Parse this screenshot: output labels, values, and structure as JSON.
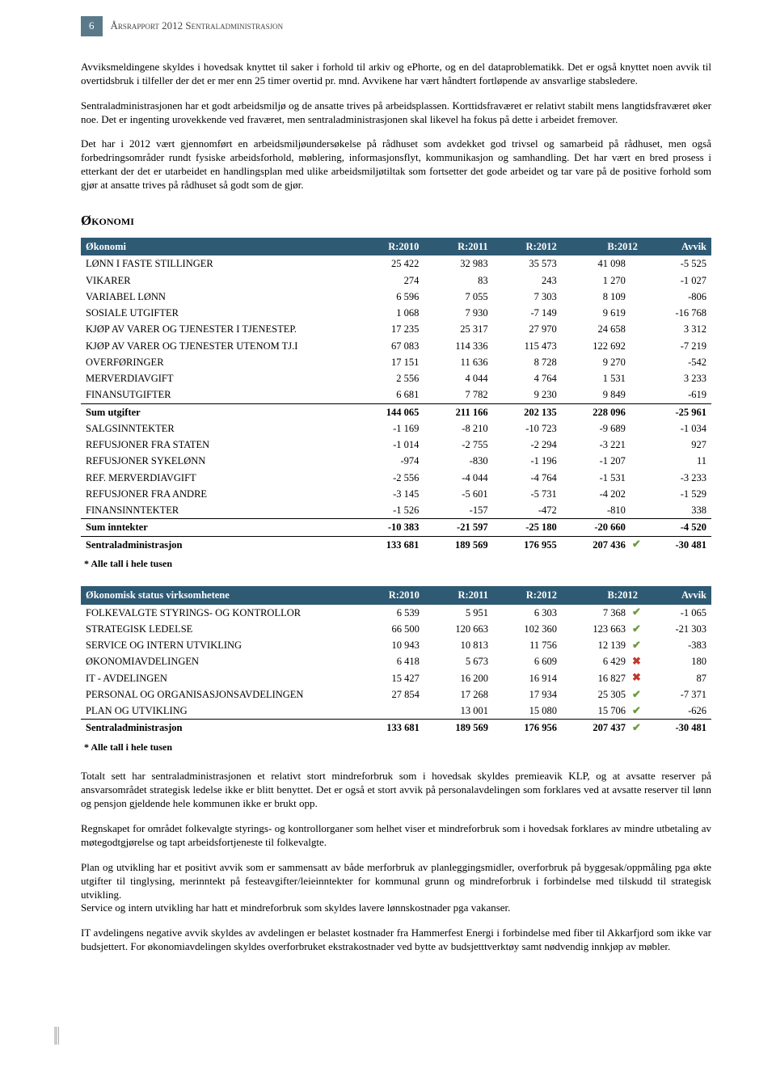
{
  "header": {
    "page_number": "6",
    "title": "Årsrapport 2012 Sentraladministrasjon"
  },
  "paragraphs": [
    "Avviksmeldingene skyldes i hovedsak knyttet til saker i forhold til arkiv og ePhorte, og en del dataproblematikk. Det er også knyttet noen avvik til overtidsbruk i tilfeller der det er mer enn 25 timer overtid pr. mnd. Avvikene har vært håndtert fortløpende av ansvarlige stabsledere.",
    "Sentraladministrasjonen har et godt arbeidsmiljø og de ansatte trives på arbeidsplassen. Korttidsfraværet er relativt stabilt mens langtidsfraværet øker noe. Det er ingenting urovekkende ved fraværet, men sentraladministrasjonen skal likevel ha fokus på dette i arbeidet fremover.",
    "Det har i 2012 vært gjennomført en arbeidsmiljøundersøkelse på rådhuset som avdekket god trivsel og samarbeid på rådhuset, men også forbedringsområder rundt fysiske arbeidsforhold, møblering, informasjonsflyt, kommunikasjon og samhandling. Det har vært en bred prosess i etterkant der det er utarbeidet en handlingsplan med ulike arbeidsmiljøtiltak som fortsetter det gode arbeidet og tar vare på de positive forhold som gjør at ansatte trives på rådhuset så godt som de gjør."
  ],
  "section_title": "Økonomi",
  "table1": {
    "header_bg": "#2e5a74",
    "header_color": "#ffffff",
    "columns": [
      "Økonomi",
      "R:2010",
      "R:2011",
      "R:2012",
      "B:2012",
      "Avvik"
    ],
    "rows": [
      {
        "label": "LØNN I FASTE STILLINGER",
        "c": [
          "25 422",
          "32 983",
          "35 573",
          "41 098",
          "-5 525"
        ]
      },
      {
        "label": "VIKARER",
        "c": [
          "274",
          "83",
          "243",
          "1 270",
          "-1 027"
        ]
      },
      {
        "label": "VARIABEL LØNN",
        "c": [
          "6 596",
          "7 055",
          "7 303",
          "8 109",
          "-806"
        ]
      },
      {
        "label": "SOSIALE UTGIFTER",
        "c": [
          "1 068",
          "7 930",
          "-7 149",
          "9 619",
          "-16 768"
        ]
      },
      {
        "label": "KJØP AV VARER OG TJENESTER I TJENESTEP.",
        "c": [
          "17 235",
          "25 317",
          "27 970",
          "24 658",
          "3 312"
        ]
      },
      {
        "label": "KJØP AV VARER OG TJENESTER UTENOM TJ.I",
        "c": [
          "67 083",
          "114 336",
          "115 473",
          "122 692",
          "-7 219"
        ]
      },
      {
        "label": "OVERFØRINGER",
        "c": [
          "17 151",
          "11 636",
          "8 728",
          "9 270",
          "-542"
        ]
      },
      {
        "label": "MERVERDIAVGIFT",
        "c": [
          "2 556",
          "4 044",
          "4 764",
          "1 531",
          "3 233"
        ]
      },
      {
        "label": "FINANSUTGIFTER",
        "c": [
          "6 681",
          "7 782",
          "9 230",
          "9 849",
          "-619"
        ]
      }
    ],
    "subtotal1": {
      "label": "Sum utgifter",
      "c": [
        "144 065",
        "211 166",
        "202 135",
        "228 096",
        "-25 961"
      ]
    },
    "rows2": [
      {
        "label": "SALGSINNTEKTER",
        "c": [
          "-1 169",
          "-8 210",
          "-10 723",
          "-9 689",
          "-1 034"
        ]
      },
      {
        "label": "REFUSJONER FRA STATEN",
        "c": [
          "-1 014",
          "-2 755",
          "-2 294",
          "-3 221",
          "927"
        ]
      },
      {
        "label": "REFUSJONER SYKELØNN",
        "c": [
          "-974",
          "-830",
          "-1 196",
          "-1 207",
          "11"
        ]
      },
      {
        "label": "REF. MERVERDIAVGIFT",
        "c": [
          "-2 556",
          "-4 044",
          "-4 764",
          "-1 531",
          "-3 233"
        ]
      },
      {
        "label": "REFUSJONER FRA ANDRE",
        "c": [
          "-3 145",
          "-5 601",
          "-5 731",
          "-4 202",
          "-1 529"
        ]
      },
      {
        "label": "FINANSINNTEKTER",
        "c": [
          "-1 526",
          "-157",
          "-472",
          "-810",
          "338"
        ]
      }
    ],
    "subtotal2": {
      "label": "Sum inntekter",
      "c": [
        "-10 383",
        "-21 597",
        "-25 180",
        "-20 660",
        "-4 520"
      ]
    },
    "total": {
      "label": "Sentraladministrasjon",
      "c": [
        "133 681",
        "189 569",
        "176 955",
        "207 436",
        "-30 481"
      ],
      "icon": "check"
    },
    "footnote": "* Alle tall i hele tusen"
  },
  "table2": {
    "columns": [
      "Økonomisk status virksomhetene",
      "R:2010",
      "R:2011",
      "R:2012",
      "B:2012",
      "Avvik"
    ],
    "rows": [
      {
        "label": "FOLKEVALGTE STYRINGS- OG KONTROLLOR",
        "c": [
          "6 539",
          "5 951",
          "6 303",
          "7 368",
          "-1 065"
        ],
        "icon": "check"
      },
      {
        "label": "STRATEGISK LEDELSE",
        "c": [
          "66 500",
          "120 663",
          "102 360",
          "123 663",
          "-21 303"
        ],
        "icon": "check"
      },
      {
        "label": "SERVICE OG INTERN UTVIKLING",
        "c": [
          "10 943",
          "10 813",
          "11 756",
          "12 139",
          "-383"
        ],
        "icon": "check"
      },
      {
        "label": "ØKONOMIAVDELINGEN",
        "c": [
          "6 418",
          "5 673",
          "6 609",
          "6 429",
          "180"
        ],
        "icon": "cross"
      },
      {
        "label": "IT - AVDELINGEN",
        "c": [
          "15 427",
          "16 200",
          "16 914",
          "16 827",
          "87"
        ],
        "icon": "cross"
      },
      {
        "label": "PERSONAL OG ORGANISASJONSAVDELINGEN",
        "c": [
          "27 854",
          "17 268",
          "17 934",
          "25 305",
          "-7 371"
        ],
        "icon": "check"
      },
      {
        "label": "PLAN OG UTVIKLING",
        "c": [
          "",
          "13 001",
          "15 080",
          "15 706",
          "-626"
        ],
        "icon": "check"
      }
    ],
    "total": {
      "label": "Sentraladministrasjon",
      "c": [
        "133 681",
        "189 569",
        "176 956",
        "207 437",
        "-30 481"
      ],
      "icon": "check"
    },
    "footnote": "* Alle tall i hele tusen"
  },
  "paragraphs2": [
    "Totalt sett har sentraladministrasjonen et relativt stort mindreforbruk som i hovedsak skyldes premieavik KLP, og at avsatte reserver på ansvarsområdet strategisk ledelse ikke er blitt benyttet. Det er også et stort avvik på personalavdelingen som forklares ved at avsatte reserver til lønn og pensjon gjeldende hele kommunen ikke er brukt opp.",
    "Regnskapet for området folkevalgte styrings- og kontrollorganer som helhet viser et mindreforbruk som i hovedsak forklares av mindre utbetaling av møtegodtgjørelse og tapt arbeidsfortjeneste til folkevalgte.",
    "Plan og utvikling har et positivt avvik som er sammensatt av både merforbruk av planleggingsmidler, overforbruk på byggesak/oppmåling pga økte utgifter til tinglysing, merinntekt på festeavgifter/leieinntekter for kommunal grunn og mindreforbruk i forbindelse med tilskudd til strategisk utvikling.\nService og intern utvikling har hatt et mindreforbruk som skyldes lavere lønnskostnader pga vakanser.",
    "IT avdelingens negative avvik skyldes av avdelingen er belastet kostnader fra Hammerfest Energi i forbindelse med fiber til Akkarfjord som ikke var budsjettert. For økonomiavdelingen skyldes overforbruket ekstrakostnader ved bytte av budsjetttverktøy samt nødvendig innkjøp av møbler."
  ]
}
